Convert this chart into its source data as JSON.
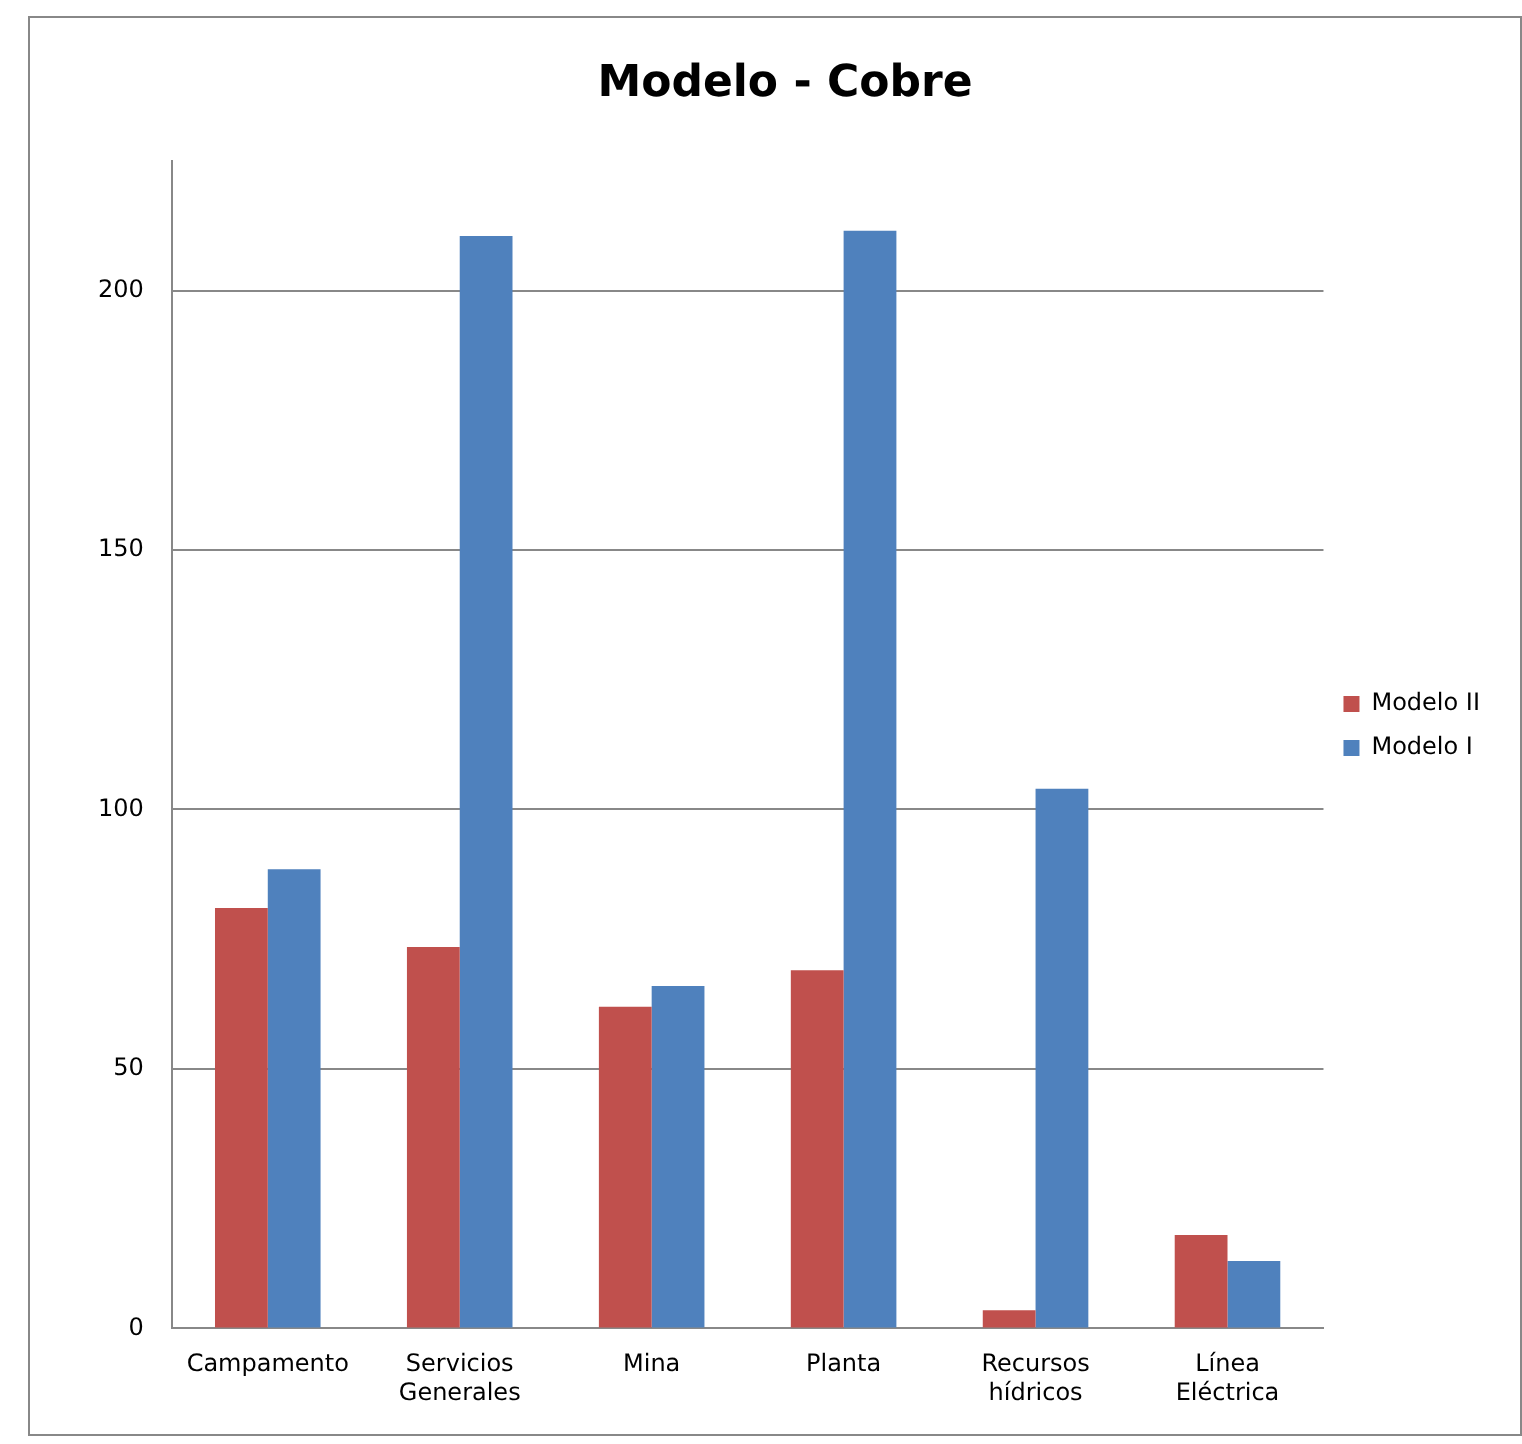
{
  "chart_data": {
    "type": "bar",
    "title": "Modelo - Cobre",
    "categories": [
      "Campamento",
      "Servicios Generales",
      "Mina",
      "Planta",
      "Recursos hídricos",
      "Línea Eléctrica"
    ],
    "series": [
      {
        "name": "Modelo II",
        "color": "#c0504d",
        "values": [
          81,
          73.5,
          62,
          69,
          3.5,
          18
        ]
      },
      {
        "name": "Modelo I",
        "color": "#4f81bd",
        "values": [
          88.5,
          210.5,
          66,
          211.5,
          104,
          13
        ]
      }
    ],
    "ylim": [
      0,
      225
    ],
    "yticks": [
      0,
      50,
      100,
      150,
      200
    ],
    "grid": "y",
    "legend": "right"
  }
}
